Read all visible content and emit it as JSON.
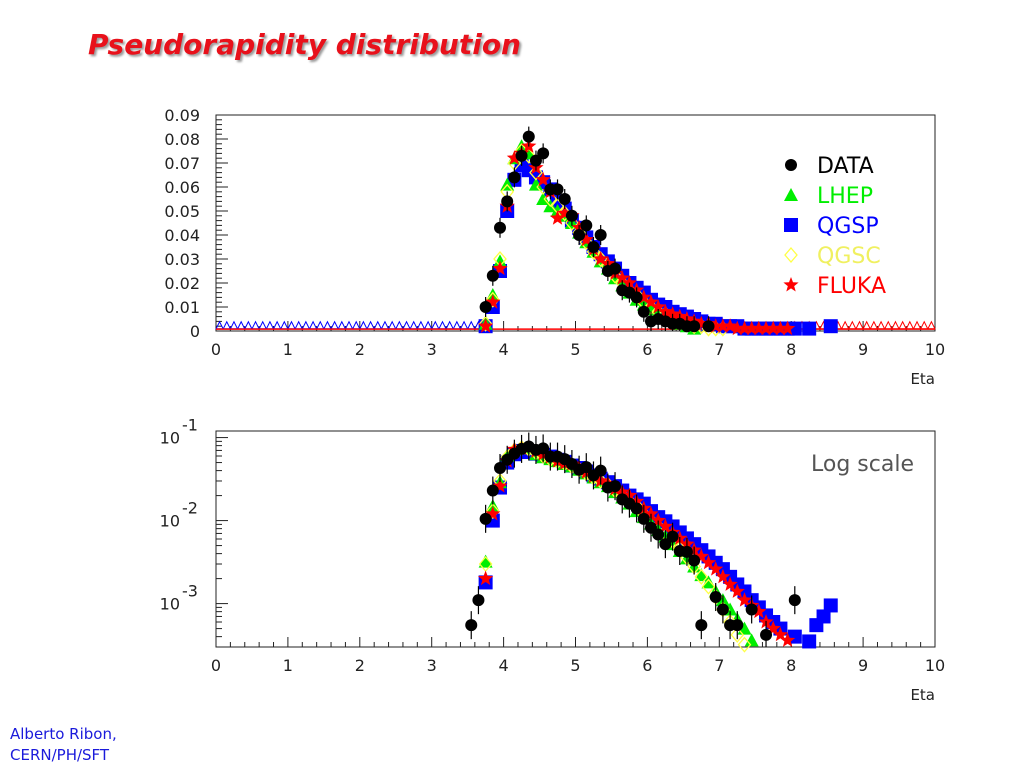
{
  "slide": {
    "title": "Pseudorapidity distribution",
    "author_line1": "Alberto Ribon,",
    "author_line2": "CERN/PH/SFT"
  },
  "chart_data": [
    {
      "type": "scatter",
      "scale": "linear",
      "xlabel": "Eta",
      "xlim": [
        0,
        10
      ],
      "ylim": [
        0,
        0.09
      ],
      "x_ticks": [
        "0",
        "1",
        "2",
        "3",
        "4",
        "5",
        "6",
        "7",
        "8",
        "9",
        "10"
      ],
      "y_ticks": [
        "0",
        "0.01",
        "0.02",
        "0.03",
        "0.04",
        "0.05",
        "0.06",
        "0.07",
        "0.08",
        "0.09"
      ],
      "legend_placement": "top-right",
      "legend": [
        {
          "name": "DATA",
          "marker": "circle",
          "color": "#000000"
        },
        {
          "name": "LHEP",
          "marker": "triangle",
          "color": "#00ee00"
        },
        {
          "name": "QGSP",
          "marker": "square",
          "color": "#0000ff"
        },
        {
          "name": "QGSC",
          "marker": "diamond",
          "color": "#ffff44"
        },
        {
          "name": "FLUKA",
          "marker": "star",
          "color": "#ff0000"
        }
      ],
      "series": [
        {
          "name": "DATA",
          "marker": "circle",
          "color": "#000000",
          "x": [
            3.75,
            3.85,
            3.95,
            4.05,
            4.15,
            4.25,
            4.35,
            4.45,
            4.55,
            4.65,
            4.75,
            4.85,
            4.95,
            5.05,
            5.15,
            5.25,
            5.35,
            5.45,
            5.55,
            5.65,
            5.75,
            5.85,
            5.95,
            6.05,
            6.15,
            6.25,
            6.35,
            6.45,
            6.55,
            6.65,
            6.85
          ],
          "y": [
            0.01,
            0.023,
            0.043,
            0.054,
            0.064,
            0.073,
            0.081,
            0.071,
            0.074,
            0.059,
            0.059,
            0.055,
            0.048,
            0.04,
            0.044,
            0.035,
            0.04,
            0.025,
            0.026,
            0.017,
            0.016,
            0.014,
            0.008,
            0.004,
            0.005,
            0.004,
            0.003,
            0.003,
            0.002,
            0.002,
            0.002
          ]
        },
        {
          "name": "LHEP",
          "marker": "triangle",
          "color": "#00ee00",
          "x": [
            3.75,
            3.85,
            3.95,
            4.05,
            4.15,
            4.25,
            4.35,
            4.45,
            4.55,
            4.65,
            4.75,
            4.85,
            4.95,
            5.05,
            5.15,
            5.25,
            5.35,
            5.45,
            5.55,
            5.65,
            5.75,
            5.85,
            5.95,
            6.05,
            6.15,
            6.25,
            6.35,
            6.45,
            6.55,
            6.65
          ],
          "y": [
            0.003,
            0.015,
            0.029,
            0.061,
            0.072,
            0.077,
            0.074,
            0.061,
            0.055,
            0.052,
            0.05,
            0.048,
            0.045,
            0.041,
            0.037,
            0.033,
            0.029,
            0.026,
            0.022,
            0.019,
            0.016,
            0.013,
            0.011,
            0.009,
            0.007,
            0.006,
            0.005,
            0.003,
            0.002,
            0.001
          ]
        },
        {
          "name": "QGSP",
          "marker": "square",
          "color": "#0000ff",
          "x": [
            3.75,
            3.85,
            3.95,
            4.05,
            4.15,
            4.25,
            4.35,
            4.45,
            4.55,
            4.65,
            4.75,
            4.85,
            4.95,
            5.05,
            5.15,
            5.25,
            5.35,
            5.45,
            5.55,
            5.65,
            5.75,
            5.85,
            5.95,
            6.05,
            6.15,
            6.25,
            6.35,
            6.45,
            6.55,
            6.65,
            6.75,
            6.85,
            6.95,
            7.05,
            7.15,
            7.25,
            7.35,
            7.45,
            7.55,
            7.65,
            7.75,
            7.85,
            7.95,
            8.05,
            8.25,
            8.55
          ],
          "y": [
            0.002,
            0.01,
            0.025,
            0.05,
            0.063,
            0.069,
            0.067,
            0.064,
            0.062,
            0.059,
            0.054,
            0.051,
            0.046,
            0.043,
            0.039,
            0.035,
            0.032,
            0.029,
            0.026,
            0.023,
            0.02,
            0.018,
            0.016,
            0.013,
            0.011,
            0.01,
            0.008,
            0.007,
            0.006,
            0.005,
            0.004,
            0.003,
            0.003,
            0.002,
            0.002,
            0.002,
            0.001,
            0.001,
            0.001,
            0.001,
            0.001,
            0.001,
            0.001,
            0.001,
            0.001,
            0.002
          ]
        },
        {
          "name": "QGSC",
          "marker": "diamond",
          "color": "#ffff44",
          "x": [
            3.75,
            3.85,
            3.95,
            4.05,
            4.15,
            4.25,
            4.35,
            4.45,
            4.55,
            4.65,
            4.75,
            4.85,
            4.95,
            5.05,
            5.15,
            5.25,
            5.35,
            5.45,
            5.55,
            5.65,
            5.75,
            5.85,
            5.95,
            6.05,
            6.15,
            6.25,
            6.35,
            6.45,
            6.55,
            6.65,
            6.75,
            6.85,
            6.95,
            7.05
          ],
          "y": [
            0.003,
            0.013,
            0.03,
            0.058,
            0.07,
            0.075,
            0.073,
            0.066,
            0.06,
            0.055,
            0.052,
            0.049,
            0.045,
            0.041,
            0.037,
            0.033,
            0.03,
            0.027,
            0.023,
            0.02,
            0.017,
            0.015,
            0.012,
            0.01,
            0.008,
            0.007,
            0.005,
            0.004,
            0.003,
            0.002,
            0.002,
            0.001,
            0.001,
            0.001
          ]
        },
        {
          "name": "FLUKA",
          "marker": "star",
          "color": "#ff0000",
          "x": [
            3.75,
            3.85,
            3.95,
            4.05,
            4.15,
            4.25,
            4.35,
            4.45,
            4.55,
            4.65,
            4.75,
            4.85,
            4.95,
            5.05,
            5.15,
            5.25,
            5.35,
            5.45,
            5.55,
            5.65,
            5.75,
            5.85,
            5.95,
            6.05,
            6.15,
            6.25,
            6.35,
            6.45,
            6.55,
            6.65,
            6.75,
            6.85,
            6.95,
            7.05,
            7.15,
            7.25,
            7.35,
            7.45,
            7.55,
            7.65,
            7.75,
            7.85,
            7.95
          ],
          "y": [
            0.002,
            0.012,
            0.026,
            0.052,
            0.072,
            0.074,
            0.077,
            0.068,
            0.063,
            0.058,
            0.047,
            0.049,
            0.048,
            0.043,
            0.038,
            0.034,
            0.03,
            0.028,
            0.024,
            0.022,
            0.02,
            0.017,
            0.014,
            0.012,
            0.01,
            0.008,
            0.007,
            0.006,
            0.005,
            0.004,
            0.003,
            0.003,
            0.002,
            0.002,
            0.002,
            0.001,
            0.001,
            0.001,
            0.001,
            0.001,
            0.001,
            0.001,
            0.001
          ]
        }
      ]
    },
    {
      "type": "scatter",
      "scale": "log",
      "xlabel": "Eta",
      "xlim": [
        0,
        10
      ],
      "ylim": [
        0.0003,
        0.12
      ],
      "x_ticks": [
        "0",
        "1",
        "2",
        "3",
        "4",
        "5",
        "6",
        "7",
        "8",
        "9",
        "10"
      ],
      "y_ticks": [
        {
          "base": "10",
          "exp": "-1",
          "value": 0.1
        },
        {
          "base": "10",
          "exp": "-2",
          "value": 0.01
        },
        {
          "base": "10",
          "exp": "-3",
          "value": 0.001
        }
      ],
      "annotation": "Log scale",
      "series": [
        {
          "name": "DATA",
          "marker": "circle",
          "color": "#000000",
          "x": [
            3.55,
            3.65,
            3.75,
            3.85,
            3.95,
            4.05,
            4.15,
            4.25,
            4.35,
            4.45,
            4.55,
            4.65,
            4.75,
            4.85,
            4.95,
            5.05,
            5.15,
            5.25,
            5.35,
            5.45,
            5.55,
            5.65,
            5.75,
            5.85,
            5.95,
            6.05,
            6.15,
            6.25,
            6.35,
            6.45,
            6.55,
            6.65,
            6.75,
            6.95,
            7.05,
            7.15,
            7.25,
            7.45,
            7.65,
            8.05
          ],
          "y": [
            0.00055,
            0.0011,
            0.0105,
            0.023,
            0.043,
            0.054,
            0.064,
            0.073,
            0.078,
            0.071,
            0.074,
            0.059,
            0.059,
            0.055,
            0.048,
            0.041,
            0.044,
            0.035,
            0.04,
            0.025,
            0.026,
            0.018,
            0.016,
            0.014,
            0.0105,
            0.0082,
            0.0068,
            0.0052,
            0.0064,
            0.0043,
            0.0042,
            0.0033,
            0.00055,
            0.0012,
            0.00085,
            0.00055,
            0.00055,
            0.00085,
            0.00042,
            0.0011
          ]
        },
        {
          "name": "LHEP",
          "marker": "triangle",
          "color": "#00ee00",
          "x": [
            3.75,
            3.85,
            3.95,
            4.05,
            4.15,
            4.25,
            4.35,
            4.45,
            4.55,
            4.65,
            4.75,
            4.85,
            4.95,
            5.05,
            5.15,
            5.25,
            5.35,
            5.45,
            5.55,
            5.65,
            5.75,
            5.85,
            5.95,
            6.05,
            6.15,
            6.25,
            6.35,
            6.45,
            6.55,
            6.65,
            6.75,
            6.85,
            6.95,
            7.05,
            7.15,
            7.25,
            7.35,
            7.45
          ],
          "y": [
            0.0032,
            0.015,
            0.029,
            0.061,
            0.072,
            0.077,
            0.074,
            0.063,
            0.058,
            0.055,
            0.052,
            0.048,
            0.045,
            0.041,
            0.037,
            0.033,
            0.029,
            0.026,
            0.022,
            0.019,
            0.016,
            0.013,
            0.011,
            0.0092,
            0.0077,
            0.0064,
            0.0052,
            0.0043,
            0.0035,
            0.0028,
            0.0022,
            0.0018,
            0.0014,
            0.0011,
            0.00085,
            0.00065,
            0.0005,
            0.00036
          ]
        },
        {
          "name": "QGSP",
          "marker": "square",
          "color": "#0000ff",
          "x": [
            3.75,
            3.85,
            3.95,
            4.05,
            4.15,
            4.25,
            4.35,
            4.45,
            4.55,
            4.65,
            4.75,
            4.85,
            4.95,
            5.05,
            5.15,
            5.25,
            5.35,
            5.45,
            5.55,
            5.65,
            5.75,
            5.85,
            5.95,
            6.05,
            6.15,
            6.25,
            6.35,
            6.45,
            6.55,
            6.65,
            6.75,
            6.85,
            6.95,
            7.05,
            7.15,
            7.25,
            7.35,
            7.45,
            7.55,
            7.65,
            7.75,
            7.85,
            8.05,
            8.25,
            8.35,
            8.45,
            8.55
          ],
          "y": [
            0.0018,
            0.01,
            0.025,
            0.05,
            0.063,
            0.069,
            0.067,
            0.064,
            0.062,
            0.059,
            0.054,
            0.051,
            0.046,
            0.043,
            0.039,
            0.035,
            0.032,
            0.029,
            0.026,
            0.023,
            0.02,
            0.018,
            0.016,
            0.013,
            0.011,
            0.0098,
            0.0085,
            0.0072,
            0.0061,
            0.0052,
            0.0044,
            0.0037,
            0.0031,
            0.0026,
            0.0021,
            0.0017,
            0.0014,
            0.0011,
            0.0009,
            0.00072,
            0.0006,
            0.0005,
            0.0004,
            0.00035,
            0.00055,
            0.0007,
            0.00095
          ]
        },
        {
          "name": "QGSC",
          "marker": "diamond",
          "color": "#ffff44",
          "x": [
            3.75,
            3.85,
            3.95,
            4.05,
            4.15,
            4.25,
            4.35,
            4.45,
            4.55,
            4.65,
            4.75,
            4.85,
            4.95,
            5.05,
            5.15,
            5.25,
            5.35,
            5.45,
            5.55,
            5.65,
            5.75,
            5.85,
            5.95,
            6.05,
            6.15,
            6.25,
            6.35,
            6.45,
            6.55,
            6.65,
            6.75,
            6.85,
            6.95,
            7.05,
            7.15,
            7.25,
            7.35
          ],
          "y": [
            0.003,
            0.013,
            0.03,
            0.058,
            0.07,
            0.075,
            0.073,
            0.066,
            0.06,
            0.055,
            0.052,
            0.049,
            0.045,
            0.041,
            0.037,
            0.033,
            0.03,
            0.027,
            0.023,
            0.02,
            0.017,
            0.015,
            0.012,
            0.01,
            0.0085,
            0.007,
            0.0057,
            0.0046,
            0.0036,
            0.0028,
            0.0021,
            0.0016,
            0.0012,
            0.00085,
            0.0006,
            0.00042,
            0.00032
          ]
        },
        {
          "name": "FLUKA",
          "marker": "star",
          "color": "#ff0000",
          "x": [
            3.75,
            3.85,
            3.95,
            4.05,
            4.15,
            4.25,
            4.35,
            4.45,
            4.55,
            4.65,
            4.75,
            4.85,
            4.95,
            5.05,
            5.15,
            5.25,
            5.35,
            5.45,
            5.55,
            5.65,
            5.75,
            5.85,
            5.95,
            6.05,
            6.15,
            6.25,
            6.35,
            6.45,
            6.55,
            6.65,
            6.75,
            6.85,
            6.95,
            7.05,
            7.15,
            7.25,
            7.35,
            7.45,
            7.55,
            7.65,
            7.75,
            7.85,
            7.95
          ],
          "y": [
            0.002,
            0.012,
            0.026,
            0.052,
            0.072,
            0.074,
            0.077,
            0.068,
            0.063,
            0.058,
            0.052,
            0.049,
            0.048,
            0.043,
            0.038,
            0.034,
            0.03,
            0.028,
            0.024,
            0.022,
            0.02,
            0.017,
            0.014,
            0.012,
            0.01,
            0.0085,
            0.0072,
            0.0061,
            0.0052,
            0.0044,
            0.0037,
            0.0031,
            0.0026,
            0.0021,
            0.0017,
            0.0014,
            0.0011,
            0.00095,
            0.0008,
            0.0006,
            0.0005,
            0.00042,
            0.00036
          ]
        }
      ]
    }
  ]
}
